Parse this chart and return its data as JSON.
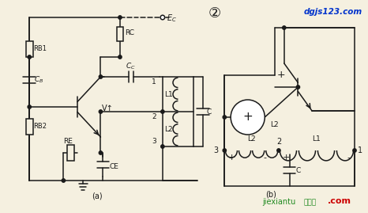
{
  "bg_color": "#f5f0e0",
  "line_color": "#1a1a1a",
  "fig_width": 4.66,
  "fig_height": 2.69,
  "dpi": 100,
  "label_a": "(a)",
  "label_b": "(b)",
  "circle2_text": "②",
  "site_top": "dgjs123.com",
  "site_bottom": "jiexiantu",
  "site_com": ".com",
  "site_cn_text": "接线图"
}
